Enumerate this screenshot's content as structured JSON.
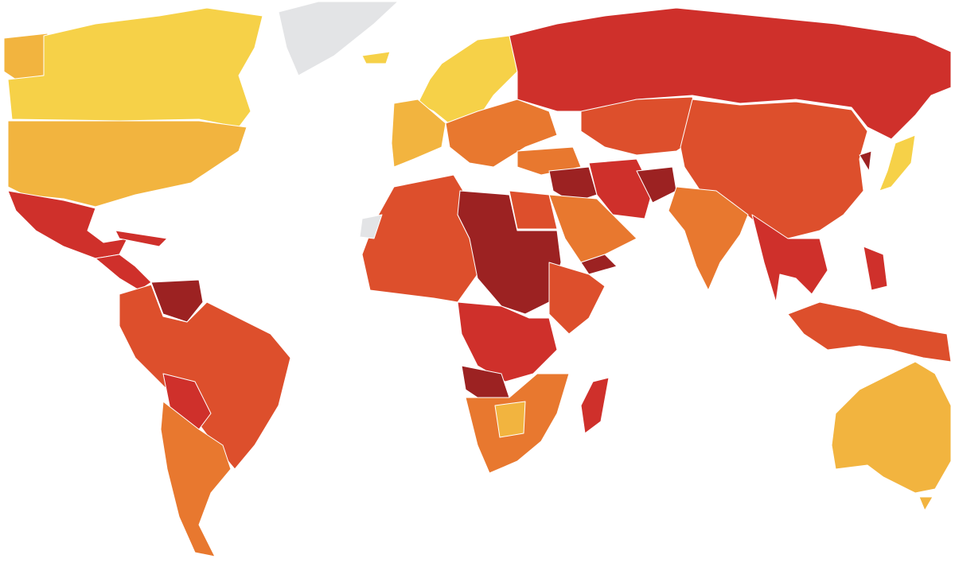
{
  "map": {
    "palette": [
      "#f6d148",
      "#f2b43f",
      "#e8782f",
      "#dd4f2c",
      "#cf302b",
      "#9c2222",
      "#e3e4e6"
    ]
  }
}
